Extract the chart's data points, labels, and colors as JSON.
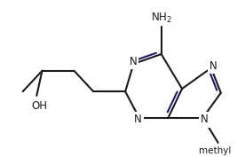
{
  "bg_color": "#ffffff",
  "line_color": "#1a1a1a",
  "double_bond_color": "#1a1a6e",
  "text_color": "#1a1a1a",
  "line_width": 1.5,
  "font_size": 8.5,
  "figsize": [
    2.76,
    1.77
  ],
  "dpi": 100,
  "xlim": [
    -0.3,
    8.5
  ],
  "ylim": [
    0.8,
    6.2
  ],
  "NH2": "NH$_2$",
  "OH": "OH",
  "N": "N",
  "methyl": "methyl"
}
